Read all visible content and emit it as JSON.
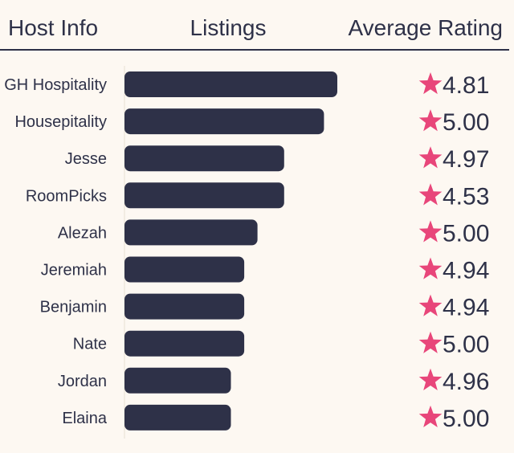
{
  "header": {
    "host_info": "Host Info",
    "listings": "Listings",
    "average_rating": "Average Rating"
  },
  "colors": {
    "background": "#fdf8f2",
    "bar": "#2e3148",
    "star": "#e8467a",
    "text": "#2e3148"
  },
  "icons": {
    "rating": "star-icon"
  },
  "chart_data": {
    "type": "bar",
    "orientation": "horizontal",
    "categories": [
      "GH Hospitality",
      "Housepitality",
      "Jesse",
      "RoomPicks",
      "Alezah",
      "Jeremiah",
      "Benjamin",
      "Nate",
      "Jordan",
      "Elaina"
    ],
    "series": [
      {
        "name": "Listings",
        "values": [
          16,
          15,
          12,
          12,
          10,
          9,
          9,
          9,
          8,
          8
        ]
      }
    ],
    "ratings": [
      "4.81",
      "5.00",
      "4.97",
      "4.53",
      "5.00",
      "4.94",
      "4.94",
      "5.00",
      "4.96",
      "5.00"
    ],
    "title": "",
    "xlabel": "",
    "ylabel": "",
    "xlim": [
      0,
      16
    ],
    "grid": false
  }
}
